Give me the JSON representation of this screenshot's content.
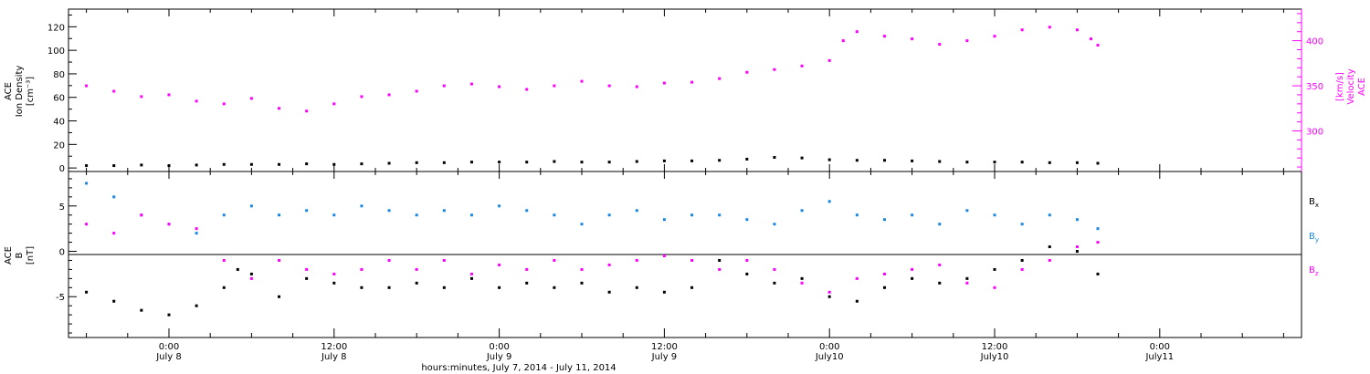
{
  "colors": {
    "density": "#000000",
    "velocity": "#ff00ff",
    "bx": "#000000",
    "by": "#1a87e3",
    "bz": "#ff00ff"
  },
  "chart_data": [
    {
      "type": "scatter",
      "panel": "top",
      "ylabel": [
        "ACE",
        "Ion Density",
        "[cm⁻³]"
      ],
      "y_ticks": [
        "0",
        "20",
        "40",
        "60",
        "80",
        "100",
        "120"
      ],
      "ylim": [
        -3,
        135
      ],
      "y2label": [
        "ACE",
        "Velocity",
        "[km/s]"
      ],
      "y2_ticks": [
        "300",
        "350",
        "400"
      ],
      "y2lim": [
        255,
        435
      ],
      "series": [
        {
          "axis": "left",
          "color": "#000000",
          "points": [
            [
              -6,
              2
            ],
            [
              -4,
              2
            ],
            [
              -2,
              2.5
            ],
            [
              0,
              2
            ],
            [
              2,
              2.5
            ],
            [
              4,
              3
            ],
            [
              6,
              3
            ],
            [
              8,
              3
            ],
            [
              10,
              3.5
            ],
            [
              12,
              3
            ],
            [
              14,
              3.5
            ],
            [
              16,
              4
            ],
            [
              18,
              4.5
            ],
            [
              20,
              4.5
            ],
            [
              22,
              5
            ],
            [
              24,
              5
            ],
            [
              26,
              5
            ],
            [
              28,
              5.5
            ],
            [
              30,
              5
            ],
            [
              32,
              5
            ],
            [
              34,
              5.5
            ],
            [
              36,
              6
            ],
            [
              38,
              6
            ],
            [
              40,
              6.5
            ],
            [
              42,
              7.5
            ],
            [
              44,
              9
            ],
            [
              46,
              8.5
            ],
            [
              48,
              7
            ],
            [
              50,
              6.5
            ],
            [
              52,
              6.5
            ],
            [
              54,
              6
            ],
            [
              56,
              5.5
            ],
            [
              58,
              5
            ],
            [
              60,
              5
            ],
            [
              62,
              5
            ],
            [
              64,
              4.5
            ],
            [
              66,
              4.5
            ],
            [
              67.5,
              4
            ]
          ]
        },
        {
          "axis": "right",
          "color": "#ff00ff",
          "points": [
            [
              -6,
              350
            ],
            [
              -4,
              344
            ],
            [
              -2,
              338
            ],
            [
              0,
              340
            ],
            [
              2,
              333
            ],
            [
              4,
              330
            ],
            [
              6,
              336
            ],
            [
              8,
              325
            ],
            [
              10,
              322
            ],
            [
              12,
              330
            ],
            [
              14,
              338
            ],
            [
              16,
              340
            ],
            [
              18,
              344
            ],
            [
              20,
              350
            ],
            [
              22,
              352
            ],
            [
              24,
              349
            ],
            [
              26,
              346
            ],
            [
              28,
              350
            ],
            [
              30,
              355
            ],
            [
              32,
              350
            ],
            [
              34,
              349
            ],
            [
              36,
              353
            ],
            [
              38,
              354
            ],
            [
              40,
              358
            ],
            [
              42,
              365
            ],
            [
              44,
              368
            ],
            [
              46,
              372
            ],
            [
              48,
              378
            ],
            [
              49,
              400
            ],
            [
              50,
              410
            ],
            [
              52,
              405
            ],
            [
              54,
              402
            ],
            [
              56,
              396
            ],
            [
              58,
              400
            ],
            [
              60,
              405
            ],
            [
              62,
              412
            ],
            [
              64,
              415
            ],
            [
              66,
              412
            ],
            [
              67,
              402
            ],
            [
              67.5,
              395
            ]
          ]
        }
      ]
    },
    {
      "type": "scatter",
      "panel": "bottom",
      "ylabel": [
        "ACE",
        "B",
        "[nT]"
      ],
      "y_ticks": [
        "-5",
        "0",
        "5"
      ],
      "ylim": [
        -9.5,
        8.8
      ],
      "legend": [
        "B",
        "B",
        "B"
      ],
      "legend_subscripts": [
        "x",
        "y",
        "z"
      ],
      "legend_placement": "right",
      "series": [
        {
          "name": "Bx",
          "color": "#000000",
          "points": [
            [
              -6,
              -4.5
            ],
            [
              -4,
              -5.5
            ],
            [
              -2,
              -6.5
            ],
            [
              0,
              -7
            ],
            [
              2,
              -6
            ],
            [
              4,
              -4
            ],
            [
              5,
              -2
            ],
            [
              6,
              -2.5
            ],
            [
              8,
              -5
            ],
            [
              10,
              -3
            ],
            [
              12,
              -3.5
            ],
            [
              14,
              -4
            ],
            [
              16,
              -4
            ],
            [
              18,
              -3.5
            ],
            [
              20,
              -4
            ],
            [
              22,
              -3
            ],
            [
              24,
              -4
            ],
            [
              26,
              -3.5
            ],
            [
              28,
              -4
            ],
            [
              30,
              -3.5
            ],
            [
              32,
              -4.5
            ],
            [
              34,
              -4
            ],
            [
              36,
              -4.5
            ],
            [
              38,
              -4
            ],
            [
              40,
              -1
            ],
            [
              42,
              -2.5
            ],
            [
              44,
              -3.5
            ],
            [
              46,
              -3
            ],
            [
              48,
              -5
            ],
            [
              50,
              -5.5
            ],
            [
              52,
              -4
            ],
            [
              54,
              -3
            ],
            [
              56,
              -3.5
            ],
            [
              58,
              -3
            ],
            [
              60,
              -2
            ],
            [
              62,
              -1
            ],
            [
              64,
              0.5
            ],
            [
              66,
              0
            ],
            [
              67.5,
              -2.5
            ]
          ]
        },
        {
          "name": "By",
          "color": "#1a87e3",
          "points": [
            [
              -6,
              7.5
            ],
            [
              -4,
              6
            ],
            [
              -2,
              4
            ],
            [
              0,
              3
            ],
            [
              2,
              2
            ],
            [
              4,
              4
            ],
            [
              6,
              5
            ],
            [
              8,
              4
            ],
            [
              10,
              4.5
            ],
            [
              12,
              4
            ],
            [
              14,
              5
            ],
            [
              16,
              4.5
            ],
            [
              18,
              4
            ],
            [
              20,
              4.5
            ],
            [
              22,
              4
            ],
            [
              24,
              5
            ],
            [
              26,
              4.5
            ],
            [
              28,
              4
            ],
            [
              30,
              3
            ],
            [
              32,
              4
            ],
            [
              34,
              4.5
            ],
            [
              36,
              3.5
            ],
            [
              38,
              4
            ],
            [
              40,
              4
            ],
            [
              42,
              3.5
            ],
            [
              44,
              3
            ],
            [
              46,
              4.5
            ],
            [
              48,
              5.5
            ],
            [
              50,
              4
            ],
            [
              52,
              3.5
            ],
            [
              54,
              4
            ],
            [
              56,
              3
            ],
            [
              58,
              4.5
            ],
            [
              60,
              4
            ],
            [
              62,
              3
            ],
            [
              64,
              4
            ],
            [
              66,
              3.5
            ],
            [
              67.5,
              2.5
            ]
          ]
        },
        {
          "name": "Bz",
          "color": "#ff00ff",
          "points": [
            [
              -6,
              3
            ],
            [
              -4,
              2
            ],
            [
              -2,
              4
            ],
            [
              0,
              3
            ],
            [
              2,
              2.5
            ],
            [
              4,
              -1
            ],
            [
              6,
              -3
            ],
            [
              8,
              -1
            ],
            [
              10,
              -2
            ],
            [
              12,
              -2.5
            ],
            [
              14,
              -2
            ],
            [
              16,
              -1
            ],
            [
              18,
              -2
            ],
            [
              20,
              -1
            ],
            [
              22,
              -2.5
            ],
            [
              24,
              -1.5
            ],
            [
              26,
              -2
            ],
            [
              28,
              -1
            ],
            [
              30,
              -2
            ],
            [
              32,
              -1.5
            ],
            [
              34,
              -1
            ],
            [
              36,
              -0.5
            ],
            [
              38,
              -1
            ],
            [
              40,
              -2
            ],
            [
              42,
              -1
            ],
            [
              44,
              -2
            ],
            [
              46,
              -3.5
            ],
            [
              48,
              -4.5
            ],
            [
              50,
              -3
            ],
            [
              52,
              -2.5
            ],
            [
              54,
              -2
            ],
            [
              56,
              -1.5
            ],
            [
              58,
              -3.5
            ],
            [
              60,
              -4
            ],
            [
              62,
              -2
            ],
            [
              64,
              -1
            ],
            [
              66,
              0.5
            ],
            [
              67.5,
              1
            ]
          ]
        }
      ]
    }
  ],
  "x_axis": {
    "xlim": [
      -7.3,
      82.3
    ],
    "ticks": [
      {
        "x": 0,
        "time": "0:00",
        "date": "July 8"
      },
      {
        "x": 12,
        "time": "12:00",
        "date": "July 8"
      },
      {
        "x": 24,
        "time": "0:00",
        "date": "July 9"
      },
      {
        "x": 36,
        "time": "12:00",
        "date": "July 9"
      },
      {
        "x": 48,
        "time": "0:00",
        "date": "July10"
      },
      {
        "x": 60,
        "time": "12:00",
        "date": "July10"
      },
      {
        "x": 72,
        "time": "0:00",
        "date": "July11"
      }
    ],
    "label": "hours:minutes, July  7, 2014 - July 11, 2014"
  }
}
